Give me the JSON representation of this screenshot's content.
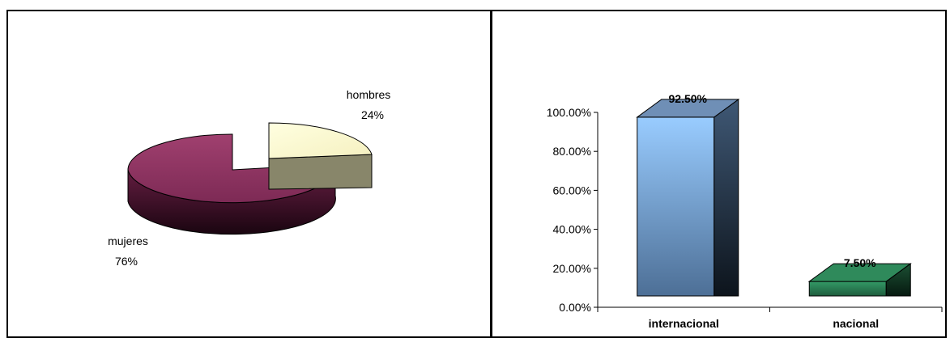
{
  "chart_data": [
    {
      "type": "pie",
      "categories": [
        "hombres",
        "mujeres"
      ],
      "values": [
        24,
        76
      ],
      "labels": [
        {
          "name": "hombres",
          "percent": "24%"
        },
        {
          "name": "mujeres",
          "percent": "76%"
        }
      ],
      "colors": {
        "hombres": "#FFFFCC",
        "mujeres": "#993366"
      },
      "style": "3d-exploded"
    },
    {
      "type": "bar",
      "categories": [
        "internacional",
        "nacional"
      ],
      "values": [
        92.5,
        7.5
      ],
      "data_labels": [
        "92.50%",
        "7.50%"
      ],
      "ylim": [
        0,
        100
      ],
      "yticks": [
        "0.00%",
        "20.00%",
        "40.00%",
        "60.00%",
        "80.00%",
        "100.00%"
      ],
      "yticks_values": [
        0,
        20,
        40,
        60,
        80,
        100
      ],
      "colors": {
        "internacional": "#99CCFF",
        "nacional": "#339966"
      },
      "style": "3d-column"
    }
  ]
}
